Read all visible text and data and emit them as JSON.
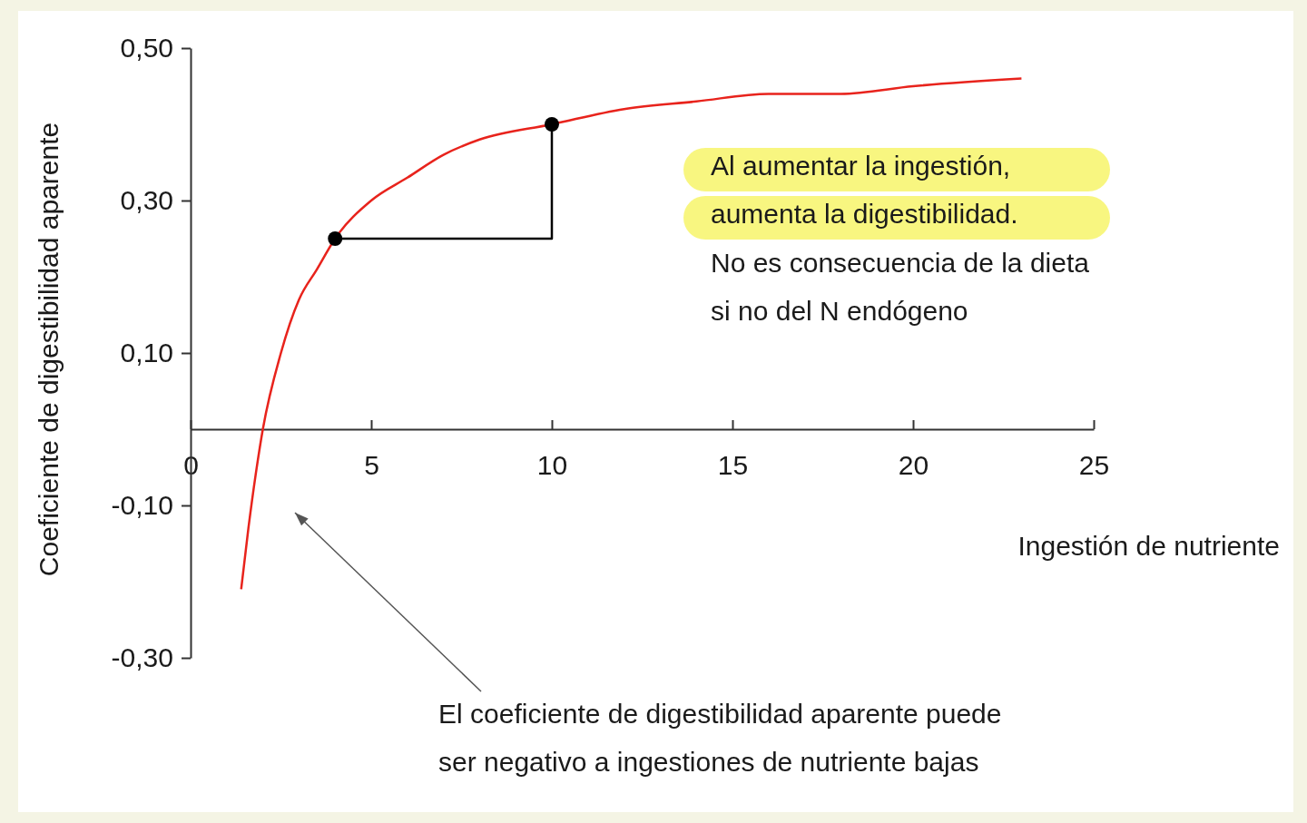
{
  "chart_data": {
    "type": "line",
    "xlabel": "Ingestión de nutriente",
    "ylabel": "Coeficiente de digestibilidad aparente",
    "xlim": [
      0,
      25
    ],
    "xticks": [
      0,
      5,
      10,
      15,
      20,
      25
    ],
    "ylim": [
      -0.3,
      0.5
    ],
    "yticks": [
      {
        "value": 0.5,
        "label": "0,50"
      },
      {
        "value": 0.3,
        "label": "0,30"
      },
      {
        "value": 0.1,
        "label": "0,10"
      },
      {
        "value": -0.1,
        "label": "-0,10"
      },
      {
        "value": -0.3,
        "label": "-0,30"
      }
    ],
    "grid": false,
    "series": [
      {
        "color": "#e8231c",
        "x": [
          1.4,
          1.6,
          1.8,
          2,
          2.5,
          3,
          3.5,
          4,
          5,
          6,
          7,
          8,
          10,
          12,
          14,
          16,
          18,
          20,
          23
        ],
        "values": [
          -0.21,
          -0.13,
          -0.06,
          0,
          0.1,
          0.17,
          0.21,
          0.25,
          0.3,
          0.33,
          0.36,
          0.38,
          0.4,
          0.42,
          0.43,
          0.44,
          0.44,
          0.45,
          0.46
        ]
      },
      {
        "type": "line",
        "color": "#000000",
        "x": [
          4,
          10,
          10
        ],
        "values": [
          0.25,
          0.25,
          0.4
        ]
      },
      {
        "type": "scatter",
        "color": "#000000",
        "marker": "circle",
        "x": [
          4,
          10
        ],
        "values": [
          0.25,
          0.4
        ]
      }
    ],
    "annotations": [
      "Al aumentar la ingestión,\naumenta la digestibilidad.",
      "No es consecuencia de la dieta\nsi no del N endógeno",
      "El coeficiente de digestibilidad aparente puede\nser negativo a ingestiones de nutriente bajas"
    ]
  }
}
